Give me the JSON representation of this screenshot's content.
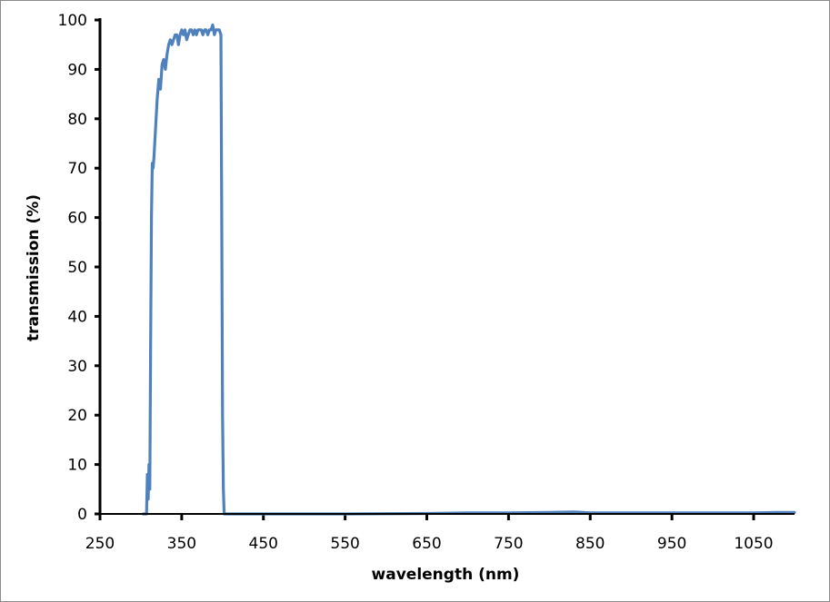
{
  "chart_data": {
    "type": "line",
    "title": "",
    "xlabel": "wavelength (nm)",
    "ylabel": "transmission (%)",
    "xlim": [
      250,
      1100
    ],
    "ylim": [
      0,
      100
    ],
    "grid": false,
    "legend": null,
    "x_ticks": [
      250,
      350,
      450,
      550,
      650,
      750,
      850,
      950,
      1050
    ],
    "y_ticks": [
      0,
      10,
      20,
      30,
      40,
      50,
      60,
      70,
      80,
      90,
      100
    ],
    "series": [
      {
        "name": "transmission",
        "color": "#4f81bd",
        "x": [
          303,
          307,
          308,
          309,
          310,
          311,
          312,
          313,
          314,
          315,
          316,
          318,
          320,
          322,
          324,
          326,
          328,
          330,
          332,
          334,
          336,
          338,
          340,
          342,
          344,
          346,
          348,
          350,
          352,
          354,
          356,
          358,
          360,
          362,
          364,
          366,
          368,
          370,
          372,
          374,
          376,
          378,
          380,
          382,
          384,
          386,
          388,
          390,
          392,
          394,
          396,
          398,
          399,
          400,
          401,
          402,
          404,
          450,
          550,
          650,
          700,
          750,
          800,
          830,
          850,
          950,
          1050,
          1080,
          1100
        ],
        "y": [
          0,
          0,
          8,
          3,
          10,
          5,
          35,
          60,
          71,
          70,
          72,
          78,
          84,
          88,
          86,
          91,
          92,
          90,
          93,
          95,
          96,
          95,
          96,
          97,
          97,
          95,
          97,
          98,
          97,
          98,
          96,
          97,
          98,
          98,
          97,
          98,
          97,
          98,
          98,
          98,
          97,
          98,
          98,
          97,
          98,
          98,
          99,
          97,
          98,
          98,
          98,
          97,
          60,
          20,
          5,
          0,
          0,
          0,
          0,
          0.1,
          0.2,
          0.2,
          0.3,
          0.4,
          0.2,
          0.2,
          0.2,
          0.3,
          0.3
        ]
      }
    ]
  },
  "axes": {
    "x_tick_labels": [
      "250",
      "350",
      "450",
      "550",
      "650",
      "750",
      "850",
      "950",
      "1050"
    ],
    "y_tick_labels": [
      "0",
      "10",
      "20",
      "30",
      "40",
      "50",
      "60",
      "70",
      "80",
      "90",
      "100"
    ],
    "x_title": "wavelength (nm)",
    "y_title": "transmission (%)"
  }
}
